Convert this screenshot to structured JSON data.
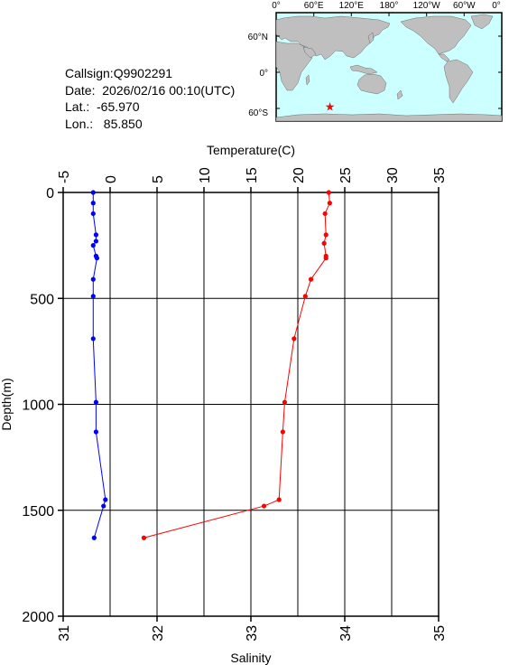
{
  "info": {
    "callsign": "Callsign:Q9902291",
    "date": "Date:  2026/02/16 00:10(UTC)",
    "lat": "Lat.:  -65.970",
    "lon": "Lon.:   85.850"
  },
  "map": {
    "lon_labels": [
      "0°",
      "60°E",
      "120°E",
      "180°",
      "120°W",
      "60°W",
      "0°"
    ],
    "lat_labels": [
      "60°N",
      "0°",
      "60°S"
    ],
    "marker": {
      "lon": 85.85,
      "lat": -65.97
    },
    "ocean_color": "#ccffff",
    "land_color": "#bfbfbf",
    "marker_color": "#ff0000"
  },
  "chart_data": {
    "type": "line",
    "ylabel": "Depth(m)",
    "ylim": [
      0,
      2000
    ],
    "y_ticks": [
      0,
      500,
      1000,
      1500,
      2000
    ],
    "y_inverted": true,
    "grid": true,
    "top_axis": {
      "label": "Temperature(C)",
      "range": [
        -5,
        35
      ],
      "ticks": [
        -5,
        0,
        5,
        10,
        15,
        20,
        25,
        30,
        35
      ]
    },
    "bottom_axis": {
      "label": "Salinity",
      "range": [
        31,
        35
      ],
      "ticks": [
        31,
        32,
        33,
        34,
        35
      ]
    },
    "series": [
      {
        "axis": "top",
        "color": "#ff0000",
        "points": [
          [
            23.3,
            0
          ],
          [
            23.4,
            50
          ],
          [
            22.9,
            100
          ],
          [
            23.0,
            200
          ],
          [
            22.8,
            240
          ],
          [
            23.0,
            300
          ],
          [
            23.0,
            310
          ],
          [
            21.4,
            410
          ],
          [
            20.8,
            490
          ],
          [
            19.6,
            690
          ],
          [
            18.6,
            990
          ],
          [
            18.4,
            1130
          ],
          [
            18.0,
            1450
          ],
          [
            16.4,
            1480
          ],
          [
            3.6,
            1630
          ]
        ]
      },
      {
        "axis": "bottom",
        "color": "#0000ff",
        "points": [
          [
            31.32,
            0
          ],
          [
            31.32,
            50
          ],
          [
            31.32,
            100
          ],
          [
            31.35,
            200
          ],
          [
            31.35,
            230
          ],
          [
            31.32,
            250
          ],
          [
            31.35,
            300
          ],
          [
            31.36,
            310
          ],
          [
            31.32,
            410
          ],
          [
            31.32,
            490
          ],
          [
            31.32,
            690
          ],
          [
            31.35,
            990
          ],
          [
            31.35,
            1130
          ],
          [
            31.45,
            1450
          ],
          [
            31.43,
            1480
          ],
          [
            31.33,
            1630
          ]
        ]
      }
    ]
  }
}
